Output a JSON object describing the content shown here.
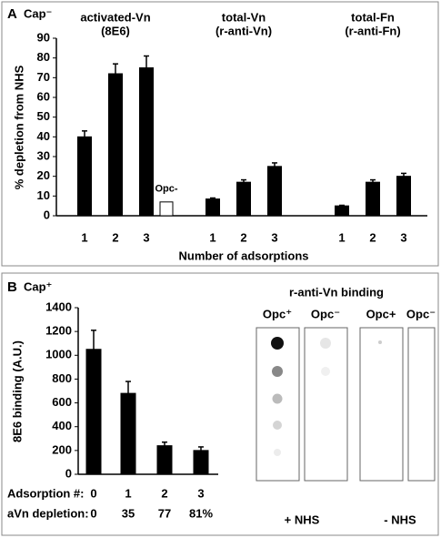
{
  "chart_data": [
    {
      "type": "bar",
      "panel": "A",
      "title": "Cap⁻",
      "ylabel": "% depletion from NHS",
      "xlabel": "Number of adsorptions",
      "ylim": [
        0,
        90
      ],
      "yticks": [
        0,
        10,
        20,
        30,
        40,
        50,
        60,
        70,
        80,
        90
      ],
      "color": "#000000",
      "groups": [
        {
          "title": [
            "activated-Vn",
            "(8E6)"
          ],
          "categories": [
            "1",
            "2",
            "3"
          ],
          "values": [
            40,
            72,
            75
          ],
          "errors": [
            3,
            5,
            6
          ]
        },
        {
          "title": [
            "total-Vn",
            "(r-anti-Vn)"
          ],
          "categories": [
            "1",
            "2",
            "3"
          ],
          "values": [
            8.5,
            17,
            25
          ],
          "errors": [
            0.5,
            1.2,
            1.8
          ]
        },
        {
          "title": [
            "total-Fn",
            "(r-anti-Fn)"
          ],
          "categories": [
            "1",
            "2",
            "3"
          ],
          "values": [
            5,
            17,
            20
          ],
          "errors": [
            0.3,
            1.2,
            1.5
          ]
        }
      ],
      "control": {
        "label": "Opc-",
        "value": 7,
        "color": "#ffffff"
      }
    },
    {
      "type": "bar",
      "panel": "B",
      "title": "Cap⁺",
      "ylabel": "8E6 binding (A.U.)",
      "ylim": [
        0,
        1400
      ],
      "yticks": [
        0,
        200,
        400,
        600,
        800,
        1000,
        1200,
        1400
      ],
      "color": "#000000",
      "categories_label": "Adsorption #:",
      "categories": [
        "0",
        "1",
        "2",
        "3"
      ],
      "values": [
        1050,
        680,
        240,
        200
      ],
      "errors": [
        160,
        100,
        30,
        30
      ],
      "depletion": {
        "label": "aVn depletion:",
        "values": [
          "0",
          "35",
          "77",
          "81%"
        ]
      },
      "blot": {
        "title": "r-anti-Vn binding",
        "lanes": [
          "Opc⁺",
          "Opc⁻",
          "Opc+",
          "Opc⁻"
        ],
        "conditions": [
          "+ NHS",
          "- NHS"
        ]
      }
    }
  ]
}
